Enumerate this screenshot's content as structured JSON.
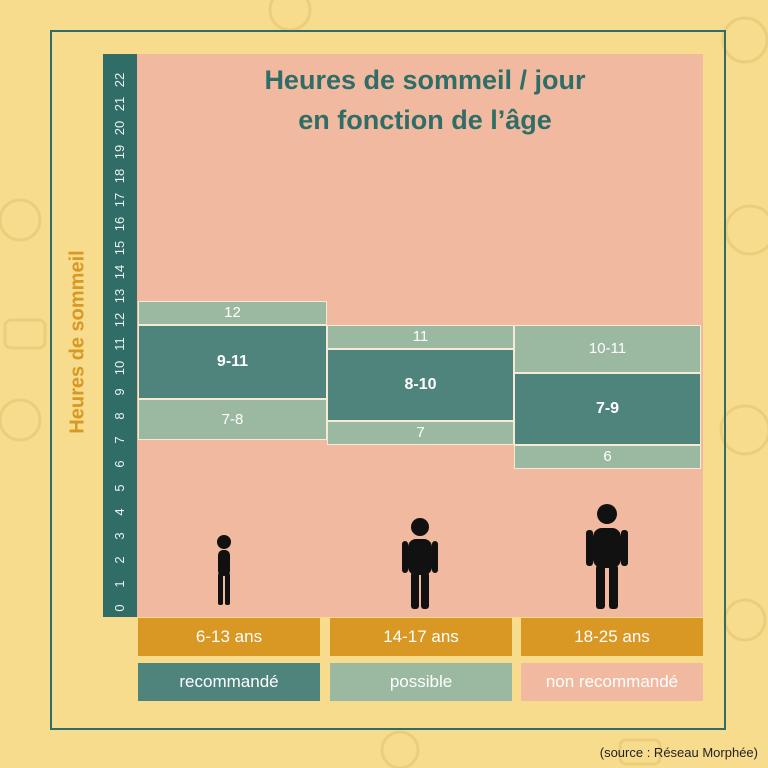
{
  "title_line1": "Heures de sommeil / jour",
  "title_line2": "en fonction de l’âge",
  "y_axis_label": "Heures de sommeil",
  "source": "(source : Réseau Morphée)",
  "colors": {
    "recommended": "#4f847d",
    "possible": "#9bb9a1",
    "not_recommended": "#f1b9a0",
    "age": "#d99723",
    "axis": "#2f6d66"
  },
  "chart_data": {
    "type": "bar",
    "ylim": [
      0,
      22
    ],
    "yticks": [
      "0",
      "1",
      "2",
      "3",
      "4",
      "5",
      "6",
      "7",
      "8",
      "9",
      "10",
      "11",
      "12",
      "13",
      "14",
      "15",
      "16",
      "17",
      "18",
      "19",
      "20",
      "21",
      "22"
    ],
    "categories": [
      "6-13 ans",
      "14-17 ans",
      "18-25 ans"
    ],
    "segments": [
      [
        {
          "from": 7,
          "to": 8.7,
          "kind": "possible",
          "label": "7-8"
        },
        {
          "from": 8.7,
          "to": 11.8,
          "kind": "recommended",
          "label": "9-11"
        },
        {
          "from": 11.8,
          "to": 12.8,
          "kind": "possible",
          "label": "12"
        }
      ],
      [
        {
          "from": 6.8,
          "to": 7.8,
          "kind": "possible",
          "label": "7"
        },
        {
          "from": 7.8,
          "to": 10.8,
          "kind": "recommended",
          "label": "8-10"
        },
        {
          "from": 10.8,
          "to": 11.8,
          "kind": "possible",
          "label": "11"
        }
      ],
      [
        {
          "from": 5.8,
          "to": 6.8,
          "kind": "possible",
          "label": "6"
        },
        {
          "from": 6.8,
          "to": 9.8,
          "kind": "recommended",
          "label": "7-9"
        },
        {
          "from": 9.8,
          "to": 11.8,
          "kind": "possible",
          "label": "10-11"
        }
      ]
    ]
  },
  "legend": {
    "recommended": "recommandé",
    "possible": "possible",
    "not_recommended": "non recommandé"
  }
}
